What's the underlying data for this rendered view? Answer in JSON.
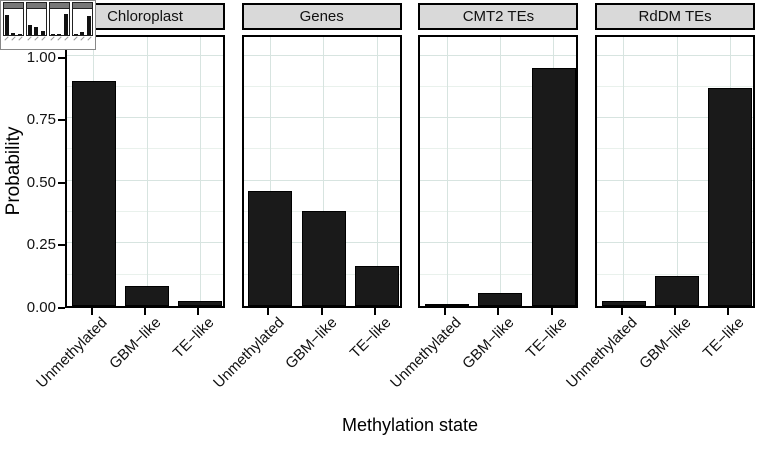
{
  "chart_data": {
    "type": "bar",
    "title": "",
    "xlabel": "Methylation state",
    "ylabel": "Probability",
    "categories": [
      "Unmethylated",
      "GBM−like",
      "TE−like"
    ],
    "facets": [
      "Chloroplast",
      "Genes",
      "CMT2 TEs",
      "RdDM TEs"
    ],
    "panels": [
      {
        "label": "Chloroplast",
        "values": [
          0.9,
          0.08,
          0.02
        ]
      },
      {
        "label": "Genes",
        "values": [
          0.46,
          0.38,
          0.16
        ]
      },
      {
        "label": "CMT2 TEs",
        "values": [
          0.005,
          0.05,
          0.95
        ]
      },
      {
        "label": "RdDM TEs",
        "values": [
          0.02,
          0.12,
          0.87
        ]
      }
    ],
    "yticks": [
      "0.00",
      "0.25",
      "0.50",
      "0.75",
      "1.00"
    ],
    "ytick_values": [
      0,
      0.25,
      0.5,
      0.75,
      1.0
    ],
    "ylim": [
      0,
      1.09
    ],
    "grid": true,
    "legend": "none",
    "bar_orientation": "vertical"
  },
  "colors": {
    "bar": "#1a1a1a",
    "strip_bg": "#d9d9d9",
    "grid_major": "#d7e4e0",
    "grid_minor": "#e9f1ec",
    "border": "#000000"
  },
  "inset": {
    "type": "thumbnail-of-chart"
  }
}
